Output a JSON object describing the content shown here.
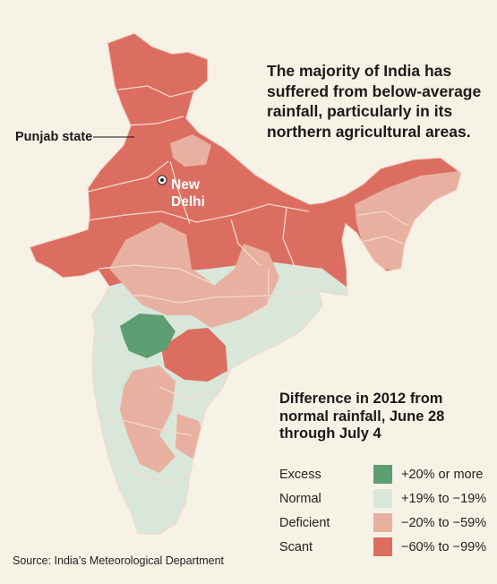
{
  "headline": "The majority of India has suffered from below-average rainfall, particularly in its northern agricultural areas.",
  "labels": {
    "punjab": "Punjab state",
    "new_delhi": "New Delhi"
  },
  "legend": {
    "title": "Difference in 2012 from normal rainfall, June 28 through July 4",
    "items": [
      {
        "category": "Excess",
        "range": "+20% or more",
        "color": "#5c9e72"
      },
      {
        "category": "Normal",
        "range": "+19% to −19%",
        "color": "#d9e6da"
      },
      {
        "category": "Deficient",
        "range": "−20% to −59%",
        "color": "#e8b0a0"
      },
      {
        "category": "Scant",
        "range": "−60% to −99%",
        "color": "#db6e61"
      }
    ]
  },
  "source": "Source: India’s Meteorological Department",
  "colors": {
    "background": "#f6f2e6",
    "border": "#f4d8cf"
  }
}
